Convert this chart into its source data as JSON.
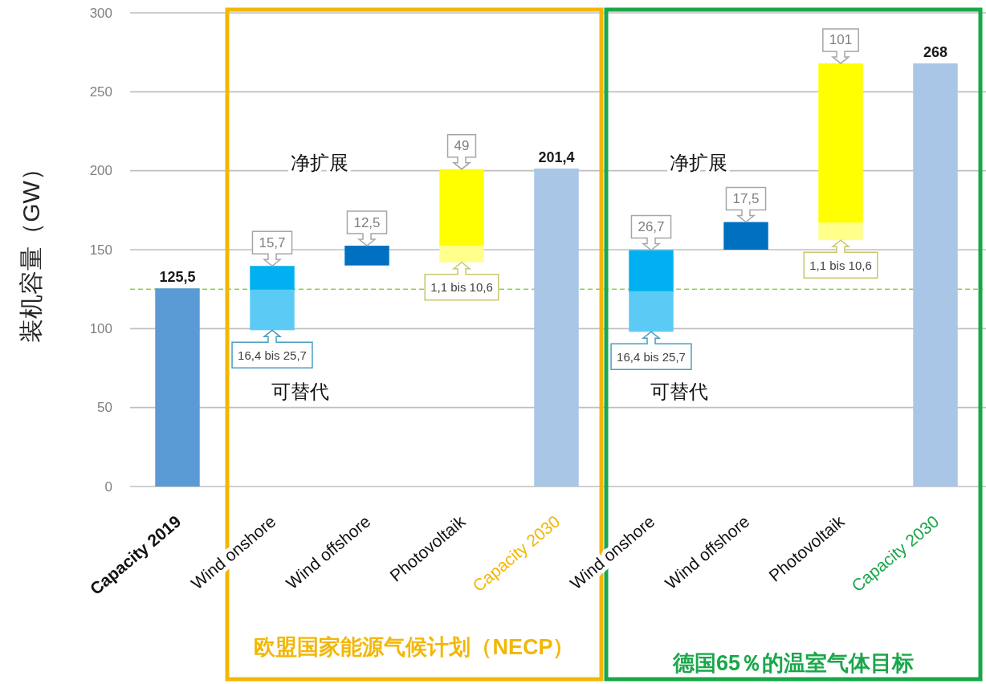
{
  "chart_data": {
    "type": "bar",
    "ylabel": "装机容量（GW）",
    "categories": [
      "Capacity 2019",
      "Wind onshore",
      "Wind offshore",
      "Photovoltaik",
      "Capacity 2030",
      "Wind onshore",
      "Wind offshore",
      "Photovoltaik",
      "Capacity 2030"
    ],
    "series": [
      {
        "values": [
          125.5,
          null,
          null,
          null,
          201.4,
          null,
          null,
          null,
          268
        ],
        "colors": [
          "#5b9bd5",
          null,
          null,
          null,
          "#a9c6e6",
          null,
          null,
          null,
          "#a9c6e6"
        ],
        "value_labels": [
          "125,5",
          null,
          null,
          null,
          "201,4",
          null,
          null,
          null,
          "268"
        ]
      },
      {
        "name": "净扩展",
        "values": [
          null,
          15.7,
          12.5,
          49,
          null,
          26.7,
          17.5,
          101,
          null
        ],
        "base": [
          null,
          124,
          140,
          152,
          null,
          123,
          150,
          167,
          null
        ],
        "colors": [
          null,
          "#00b0f0",
          "#0070c0",
          "#ffff00",
          null,
          "#00b0f0",
          "#0070c0",
          "#ffff00",
          null
        ],
        "value_labels": [
          null,
          "15,7",
          "12,5",
          "49",
          null,
          "26,7",
          "17,5",
          "101",
          null
        ]
      },
      {
        "name": "可替代",
        "values": [
          null,
          25.7,
          null,
          10.6,
          null,
          25.7,
          null,
          10.6,
          null
        ],
        "base": [
          null,
          99,
          null,
          142,
          null,
          98,
          null,
          156,
          null
        ],
        "colors": [
          null,
          "#5bcbf5",
          null,
          "#ffff8c",
          null,
          "#5bcbf5",
          null,
          "#ffff8c",
          null
        ],
        "value_labels": [
          null,
          "16,4 bis 25,7",
          null,
          "1,1 bis 10,6",
          null,
          "16,4 bis 25,7",
          null,
          "1,1 bis 10,6",
          null
        ]
      }
    ],
    "ylim": [
      0,
      300
    ],
    "yticks": [
      0,
      50,
      100,
      150,
      200,
      250,
      300
    ],
    "grid": "y",
    "ref_lines": [
      {
        "axis": "y",
        "value": 125,
        "color": "#92d050",
        "line_style": "dashed"
      }
    ],
    "annotations": [
      "欧盟国家能源气候计划（NECP）",
      "德国65％的温室气体目标"
    ]
  }
}
